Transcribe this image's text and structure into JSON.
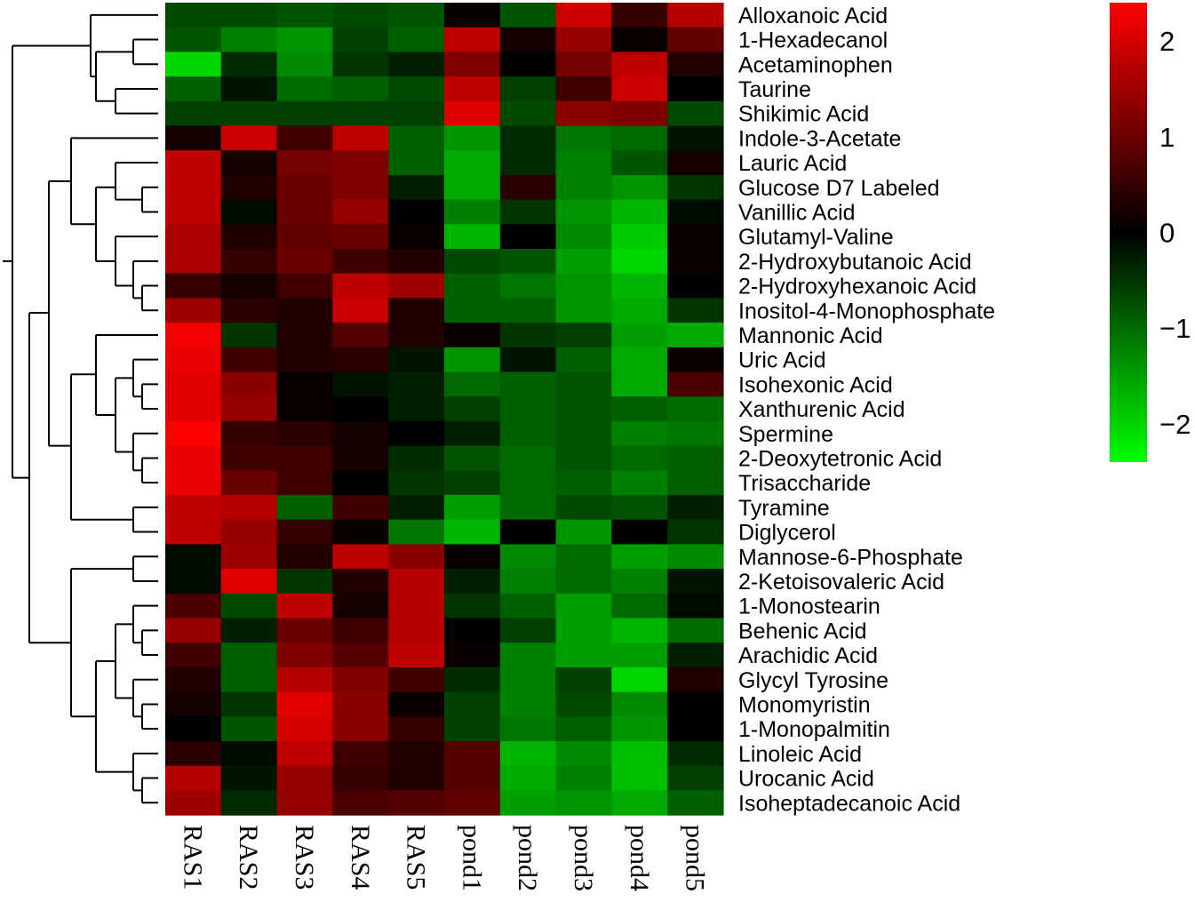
{
  "chart_data": {
    "type": "heatmap",
    "title": "",
    "columns": [
      "RAS1",
      "RAS2",
      "RAS3",
      "RAS4",
      "RAS5",
      "pond1",
      "pond2",
      "pond3",
      "pond4",
      "pond5"
    ],
    "rows": [
      "Alloxanoic Acid",
      "1-Hexadecanol",
      "Acetaminophen",
      "Taurine",
      "Shikimic Acid",
      "Indole-3-Acetate",
      "Lauric Acid",
      "Glucose D7 Labeled",
      "Vanillic Acid",
      "Glutamyl-Valine",
      "2-Hydroxybutanoic Acid",
      "2-Hydroxyhexanoic Acid",
      "Inositol-4-Monophosphate",
      "Mannonic Acid",
      "Uric Acid",
      "Isohexonic Acid",
      "Xanthurenic Acid",
      "Spermine",
      "2-Deoxytetronic Acid",
      "Trisaccharide",
      "Tyramine",
      "Diglycerol",
      "Mannose-6-Phosphate",
      "2-Ketoisovaleric Acid",
      "1-Monostearin",
      "Behenic Acid",
      "Arachidic Acid",
      "Glycyl Tyrosine",
      "Monomyristin",
      "1-Monopalmitin",
      "Linoleic Acid",
      "Urocanic Acid",
      "Isoheptadecanoic Acid"
    ],
    "values": [
      [
        -0.7,
        -0.7,
        -0.8,
        -0.7,
        -0.8,
        0.1,
        -0.8,
        1.9,
        0.5,
        1.7
      ],
      [
        -0.8,
        -1.2,
        -1.4,
        -0.6,
        -0.9,
        1.8,
        0.2,
        1.4,
        0.1,
        0.9
      ],
      [
        -2.0,
        -0.4,
        -1.3,
        -0.5,
        -0.3,
        1.2,
        0.0,
        1.1,
        1.8,
        0.3
      ],
      [
        -0.9,
        -0.2,
        -1.0,
        -0.9,
        -0.7,
        1.8,
        -0.6,
        0.6,
        1.9,
        0.0
      ],
      [
        -0.6,
        -0.6,
        -0.6,
        -0.6,
        -0.6,
        2.1,
        -0.7,
        1.3,
        1.2,
        -0.7
      ],
      [
        0.2,
        1.9,
        0.6,
        1.8,
        -0.9,
        -1.4,
        -0.4,
        -1.1,
        -1.0,
        -0.2
      ],
      [
        1.8,
        0.2,
        1.1,
        1.2,
        -0.9,
        -1.6,
        -0.4,
        -1.2,
        -0.8,
        0.2
      ],
      [
        1.8,
        0.3,
        1.0,
        1.2,
        -0.3,
        -1.6,
        0.4,
        -1.2,
        -1.4,
        -0.5
      ],
      [
        1.8,
        -0.1,
        1.0,
        1.4,
        0.0,
        -1.2,
        -0.5,
        -1.4,
        -1.7,
        -0.1
      ],
      [
        1.6,
        0.3,
        0.9,
        1.0,
        0.1,
        -1.7,
        0.0,
        -1.3,
        -1.9,
        0.1
      ],
      [
        1.6,
        0.5,
        1.0,
        0.6,
        0.3,
        -0.7,
        -0.8,
        -1.5,
        -2.0,
        0.1
      ],
      [
        0.5,
        0.2,
        0.6,
        1.8,
        1.5,
        -0.9,
        -1.1,
        -1.4,
        -1.7,
        0.0
      ],
      [
        1.5,
        0.4,
        0.3,
        1.9,
        0.3,
        -0.9,
        -0.9,
        -1.4,
        -1.6,
        -0.5
      ],
      [
        2.3,
        -0.5,
        0.3,
        0.8,
        0.3,
        0.1,
        -0.5,
        -0.6,
        -1.5,
        -1.6
      ],
      [
        2.2,
        0.6,
        0.3,
        0.4,
        -0.2,
        -1.4,
        -0.2,
        -0.9,
        -1.6,
        0.1
      ],
      [
        2.1,
        1.3,
        0.1,
        -0.2,
        -0.3,
        -1.0,
        -0.9,
        -0.8,
        -1.6,
        0.7
      ],
      [
        2.1,
        1.4,
        0.1,
        0.0,
        -0.3,
        -0.6,
        -0.9,
        -0.8,
        -0.9,
        -1.0
      ],
      [
        2.4,
        0.5,
        0.4,
        0.2,
        0.0,
        -0.3,
        -0.9,
        -0.8,
        -1.2,
        -1.1
      ],
      [
        2.2,
        0.6,
        0.6,
        0.2,
        -0.4,
        -0.8,
        -1.0,
        -0.8,
        -1.0,
        -0.9
      ],
      [
        2.2,
        1.0,
        0.6,
        0.0,
        -0.5,
        -0.6,
        -1.0,
        -0.9,
        -1.2,
        -0.9
      ],
      [
        1.8,
        1.7,
        -0.9,
        0.6,
        -0.3,
        -1.5,
        -1.0,
        -0.7,
        -0.8,
        -0.3
      ],
      [
        1.8,
        1.4,
        0.5,
        0.1,
        -1.1,
        -1.7,
        0.0,
        -1.4,
        0.0,
        -0.5
      ],
      [
        -0.1,
        1.5,
        0.3,
        1.8,
        1.3,
        0.1,
        -1.3,
        -1.0,
        -1.5,
        -1.3
      ],
      [
        -0.1,
        2.1,
        -0.5,
        0.3,
        1.7,
        -0.3,
        -1.2,
        -1.0,
        -1.2,
        -0.2
      ],
      [
        0.7,
        -0.7,
        1.8,
        0.2,
        1.7,
        -0.5,
        -0.9,
        -1.5,
        -1.0,
        -0.1
      ],
      [
        1.4,
        -0.3,
        1.0,
        0.6,
        1.7,
        0.0,
        -0.6,
        -1.5,
        -1.7,
        -1.0
      ],
      [
        0.6,
        -0.9,
        1.2,
        0.8,
        1.8,
        0.1,
        -1.2,
        -1.5,
        -1.5,
        -0.3
      ],
      [
        0.3,
        -0.9,
        1.7,
        1.2,
        0.6,
        -0.4,
        -1.2,
        -0.6,
        -2.0,
        0.3
      ],
      [
        0.2,
        -0.5,
        2.1,
        1.3,
        0.1,
        -0.6,
        -1.2,
        -0.7,
        -1.3,
        0.0
      ],
      [
        0.0,
        -0.8,
        2.0,
        1.3,
        0.5,
        -0.6,
        -1.1,
        -0.9,
        -1.4,
        0.0
      ],
      [
        0.4,
        -0.1,
        1.8,
        0.6,
        0.3,
        0.8,
        -1.7,
        -1.3,
        -1.8,
        -0.4
      ],
      [
        1.7,
        -0.2,
        1.4,
        0.5,
        0.3,
        0.8,
        -1.6,
        -1.2,
        -1.8,
        -0.6
      ],
      [
        1.5,
        -0.4,
        1.4,
        0.7,
        0.8,
        0.9,
        -1.5,
        -1.4,
        -1.6,
        -0.9
      ]
    ],
    "colorbar": {
      "ticks": [
        2,
        1,
        0,
        -1,
        -2
      ],
      "range": [
        -2.4,
        2.4
      ]
    },
    "colors": {
      "low": "#00ff00",
      "mid": "#000000",
      "high": "#ff0000"
    },
    "dendrogram": "rows"
  }
}
